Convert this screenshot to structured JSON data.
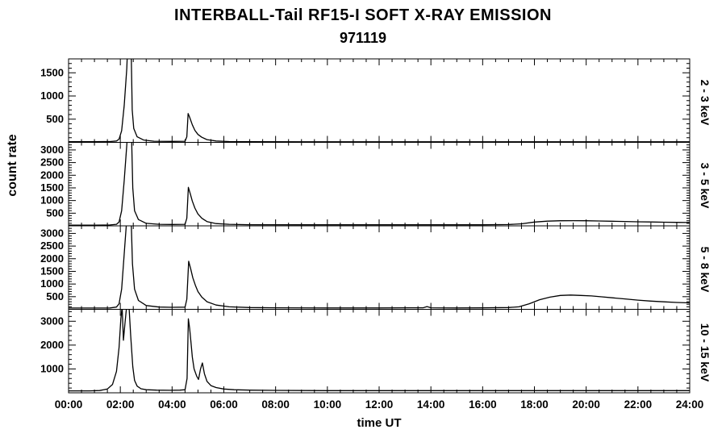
{
  "chart": {
    "title": "INTERBALL-Tail RF15-I SOFT X-RAY EMISSION",
    "subtitle": "971119",
    "ylabel": "count rate",
    "xlabel": "time UT"
  },
  "chart_data": {
    "type": "line",
    "title": "INTERBALL-Tail RF15-I SOFT X-RAY EMISSION",
    "subtitle": "971119",
    "xlabel": "time UT",
    "ylabel": "count rate",
    "line_color": "#000000",
    "grid": false,
    "legend": "none",
    "x_range": [
      0,
      24
    ],
    "x_major_step": 2,
    "x_minor_step": 0.5,
    "x_major_ticks": [
      0,
      2,
      4,
      6,
      8,
      10,
      12,
      14,
      16,
      18,
      20,
      22,
      24
    ],
    "x_tick_labels": [
      "00:00",
      "02:00",
      "04:00",
      "06:00",
      "08:00",
      "10:00",
      "12:00",
      "14:00",
      "16:00",
      "18:00",
      "20:00",
      "22:00",
      "24:00"
    ],
    "panels": [
      {
        "name": "2 - 3 keV",
        "ylim": [
          0,
          1800
        ],
        "yticks": [
          500,
          1000,
          1500
        ],
        "y_minor_step": 100,
        "points": [
          [
            0,
            15
          ],
          [
            1.0,
            15
          ],
          [
            1.6,
            18
          ],
          [
            1.85,
            30
          ],
          [
            1.95,
            70
          ],
          [
            2.05,
            250
          ],
          [
            2.15,
            800
          ],
          [
            2.25,
            1600
          ],
          [
            2.32,
            2600
          ],
          [
            2.4,
            2600
          ],
          [
            2.46,
            700
          ],
          [
            2.52,
            300
          ],
          [
            2.65,
            120
          ],
          [
            2.9,
            50
          ],
          [
            3.3,
            25
          ],
          [
            4.0,
            20
          ],
          [
            4.5,
            25
          ],
          [
            4.57,
            120
          ],
          [
            4.62,
            620
          ],
          [
            4.68,
            540
          ],
          [
            4.78,
            380
          ],
          [
            4.88,
            260
          ],
          [
            5.0,
            170
          ],
          [
            5.15,
            110
          ],
          [
            5.35,
            60
          ],
          [
            5.7,
            30
          ],
          [
            6.2,
            18
          ],
          [
            7,
            14
          ],
          [
            9,
            13
          ],
          [
            12,
            13
          ],
          [
            15,
            13
          ],
          [
            18,
            13
          ],
          [
            21,
            13
          ],
          [
            24,
            13
          ]
        ]
      },
      {
        "name": "3 - 5 keV",
        "ylim": [
          0,
          3300
        ],
        "yticks": [
          500,
          1000,
          1500,
          2000,
          2500,
          3000
        ],
        "y_minor_step": 100,
        "points": [
          [
            0,
            30
          ],
          [
            1.0,
            30
          ],
          [
            1.6,
            35
          ],
          [
            1.85,
            60
          ],
          [
            1.95,
            150
          ],
          [
            2.05,
            600
          ],
          [
            2.15,
            1800
          ],
          [
            2.25,
            3200
          ],
          [
            2.3,
            4200
          ],
          [
            2.42,
            4200
          ],
          [
            2.48,
            1500
          ],
          [
            2.55,
            600
          ],
          [
            2.7,
            250
          ],
          [
            3.0,
            100
          ],
          [
            3.5,
            60
          ],
          [
            4.0,
            55
          ],
          [
            4.5,
            60
          ],
          [
            4.57,
            300
          ],
          [
            4.63,
            1520
          ],
          [
            4.7,
            1280
          ],
          [
            4.78,
            980
          ],
          [
            4.88,
            700
          ],
          [
            5.0,
            470
          ],
          [
            5.15,
            300
          ],
          [
            5.35,
            170
          ],
          [
            5.7,
            90
          ],
          [
            6.2,
            60
          ],
          [
            7,
            45
          ],
          [
            9,
            40
          ],
          [
            12,
            40
          ],
          [
            14,
            40
          ],
          [
            16,
            42
          ],
          [
            17,
            50
          ],
          [
            17.5,
            80
          ],
          [
            18,
            150
          ],
          [
            18.5,
            185
          ],
          [
            19,
            200
          ],
          [
            19.5,
            205
          ],
          [
            20,
            200
          ],
          [
            20.5,
            192
          ],
          [
            21,
            182
          ],
          [
            21.5,
            172
          ],
          [
            22,
            160
          ],
          [
            22.5,
            152
          ],
          [
            23,
            145
          ],
          [
            23.5,
            138
          ],
          [
            24,
            132
          ]
        ]
      },
      {
        "name": "5 - 8 keV",
        "ylim": [
          0,
          3300
        ],
        "yticks": [
          500,
          1000,
          1500,
          2000,
          2500,
          3000
        ],
        "y_minor_step": 100,
        "points": [
          [
            0,
            50
          ],
          [
            1.0,
            50
          ],
          [
            1.6,
            55
          ],
          [
            1.85,
            90
          ],
          [
            1.95,
            220
          ],
          [
            2.05,
            800
          ],
          [
            2.15,
            2200
          ],
          [
            2.25,
            3600
          ],
          [
            2.4,
            4200
          ],
          [
            2.47,
            1800
          ],
          [
            2.55,
            800
          ],
          [
            2.7,
            350
          ],
          [
            3.0,
            150
          ],
          [
            3.5,
            90
          ],
          [
            4.0,
            80
          ],
          [
            4.5,
            85
          ],
          [
            4.57,
            400
          ],
          [
            4.64,
            1900
          ],
          [
            4.72,
            1600
          ],
          [
            4.8,
            1250
          ],
          [
            4.9,
            950
          ],
          [
            5.0,
            700
          ],
          [
            5.15,
            480
          ],
          [
            5.35,
            300
          ],
          [
            5.7,
            170
          ],
          [
            6.2,
            100
          ],
          [
            7,
            70
          ],
          [
            8,
            60
          ],
          [
            10,
            55
          ],
          [
            12,
            55
          ],
          [
            13.7,
            60
          ],
          [
            13.85,
            110
          ],
          [
            14.0,
            60
          ],
          [
            15,
            55
          ],
          [
            16,
            58
          ],
          [
            17,
            70
          ],
          [
            17.4,
            100
          ],
          [
            17.8,
            220
          ],
          [
            18.2,
            380
          ],
          [
            18.6,
            480
          ],
          [
            19.0,
            550
          ],
          [
            19.4,
            565
          ],
          [
            19.8,
            550
          ],
          [
            20.2,
            530
          ],
          [
            20.6,
            495
          ],
          [
            21.0,
            455
          ],
          [
            21.5,
            410
          ],
          [
            22.0,
            365
          ],
          [
            22.5,
            325
          ],
          [
            23.0,
            295
          ],
          [
            23.5,
            270
          ],
          [
            24,
            255
          ]
        ]
      },
      {
        "name": "10 - 15 keV",
        "ylim": [
          0,
          3500
        ],
        "yticks": [
          1000,
          2000,
          3000
        ],
        "y_minor_step": 200,
        "points": [
          [
            0,
            80
          ],
          [
            0.8,
            80
          ],
          [
            1.2,
            95
          ],
          [
            1.5,
            160
          ],
          [
            1.7,
            350
          ],
          [
            1.85,
            900
          ],
          [
            1.95,
            1900
          ],
          [
            2.02,
            3100
          ],
          [
            2.07,
            3600
          ],
          [
            2.12,
            2200
          ],
          [
            2.18,
            2900
          ],
          [
            2.25,
            3700
          ],
          [
            2.33,
            3700
          ],
          [
            2.4,
            2400
          ],
          [
            2.48,
            1100
          ],
          [
            2.55,
            520
          ],
          [
            2.65,
            280
          ],
          [
            2.8,
            170
          ],
          [
            3.0,
            130
          ],
          [
            3.4,
            110
          ],
          [
            3.9,
            105
          ],
          [
            4.3,
            110
          ],
          [
            4.5,
            130
          ],
          [
            4.58,
            600
          ],
          [
            4.63,
            3100
          ],
          [
            4.68,
            2700
          ],
          [
            4.73,
            2100
          ],
          [
            4.78,
            1500
          ],
          [
            4.85,
            1000
          ],
          [
            4.95,
            700
          ],
          [
            5.02,
            560
          ],
          [
            5.1,
            1000
          ],
          [
            5.17,
            1250
          ],
          [
            5.25,
            800
          ],
          [
            5.35,
            480
          ],
          [
            5.5,
            300
          ],
          [
            5.7,
            220
          ],
          [
            6.0,
            160
          ],
          [
            6.4,
            130
          ],
          [
            7.0,
            110
          ],
          [
            8,
            100
          ],
          [
            10,
            92
          ],
          [
            12,
            90
          ],
          [
            14,
            90
          ],
          [
            16,
            90
          ],
          [
            18,
            90
          ],
          [
            20,
            90
          ],
          [
            22,
            90
          ],
          [
            24,
            90
          ]
        ]
      }
    ]
  }
}
